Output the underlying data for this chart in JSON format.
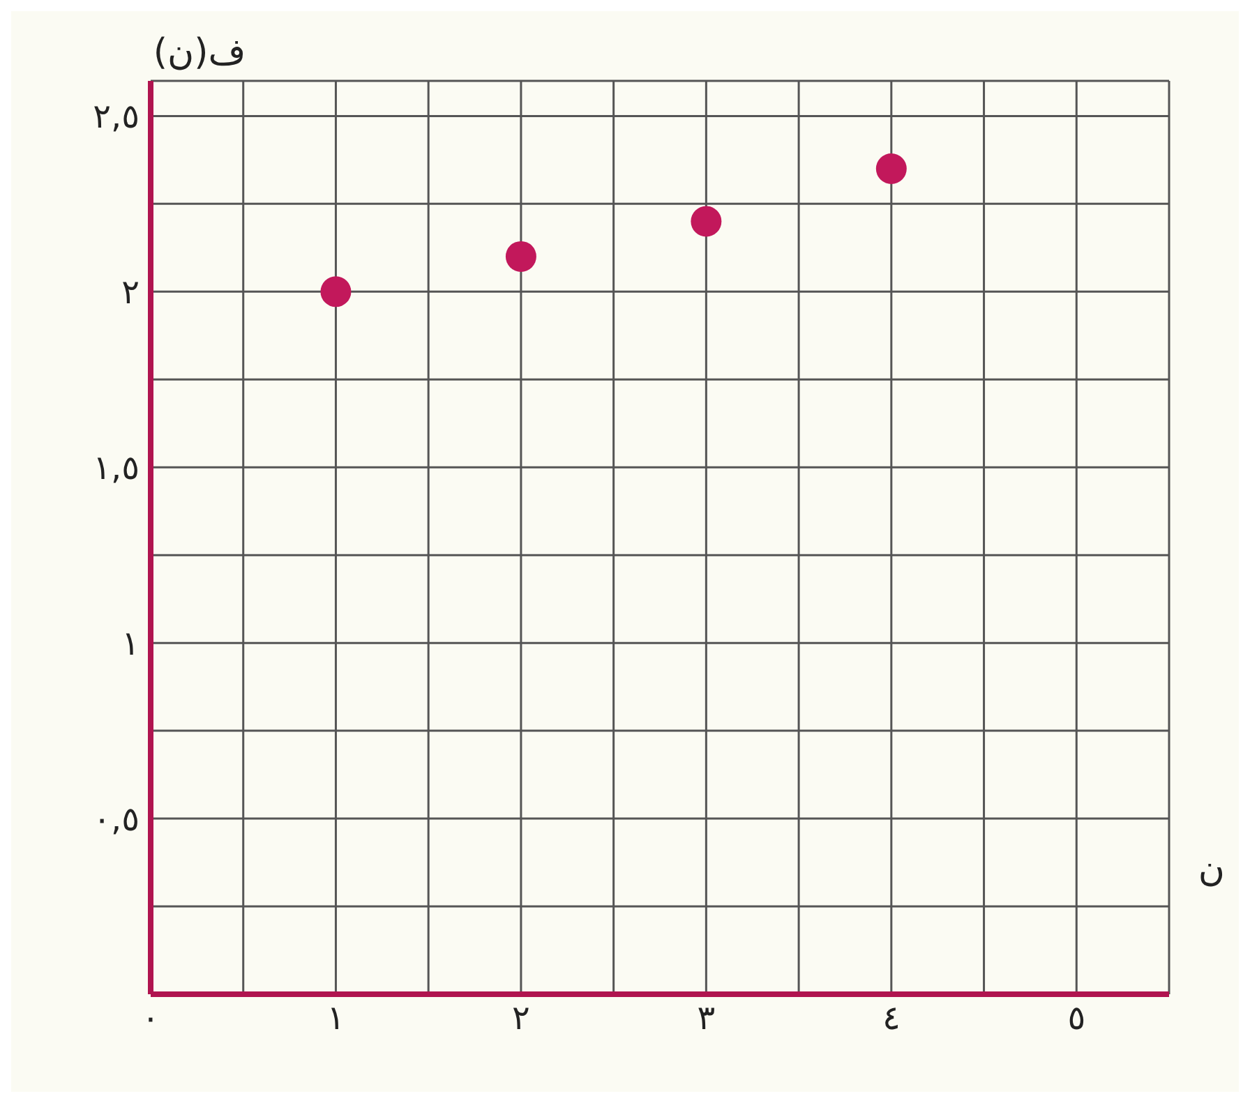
{
  "chart_data": {
    "type": "scatter",
    "xlabel": "ن",
    "ylabel": "ف(ن)",
    "x": [
      1,
      2,
      3,
      4
    ],
    "series": [
      {
        "color": "#c2185b",
        "values": [
          2,
          2.1,
          2.2,
          2.35
        ]
      }
    ],
    "xlim": [
      0,
      5.5
    ],
    "ylim": [
      0,
      2.6
    ],
    "xticks": [
      {
        "value": 0,
        "label": "٠"
      },
      {
        "value": 0.5,
        "label": null
      },
      {
        "value": 1,
        "label": "١"
      },
      {
        "value": 1.5,
        "label": null
      },
      {
        "value": 2,
        "label": "٢"
      },
      {
        "value": 2.5,
        "label": null
      },
      {
        "value": 3,
        "label": "٣"
      },
      {
        "value": 3.5,
        "label": null
      },
      {
        "value": 4,
        "label": "٤"
      },
      {
        "value": 4.5,
        "label": null
      },
      {
        "value": 5,
        "label": "٥"
      }
    ],
    "yticks": [
      {
        "value": 0,
        "label": null
      },
      {
        "value": 0.25,
        "label": null
      },
      {
        "value": 0.5,
        "label": "٠,٥"
      },
      {
        "value": 0.75,
        "label": null
      },
      {
        "value": 1,
        "label": "١"
      },
      {
        "value": 1.25,
        "label": null
      },
      {
        "value": 1.5,
        "label": "١,٥"
      },
      {
        "value": 1.75,
        "label": null
      },
      {
        "value": 2,
        "label": "٢"
      },
      {
        "value": 2.25,
        "label": null
      },
      {
        "value": 2.5,
        "label": "٢,٥"
      }
    ],
    "grid": true,
    "marker": "circle",
    "legend": false
  }
}
